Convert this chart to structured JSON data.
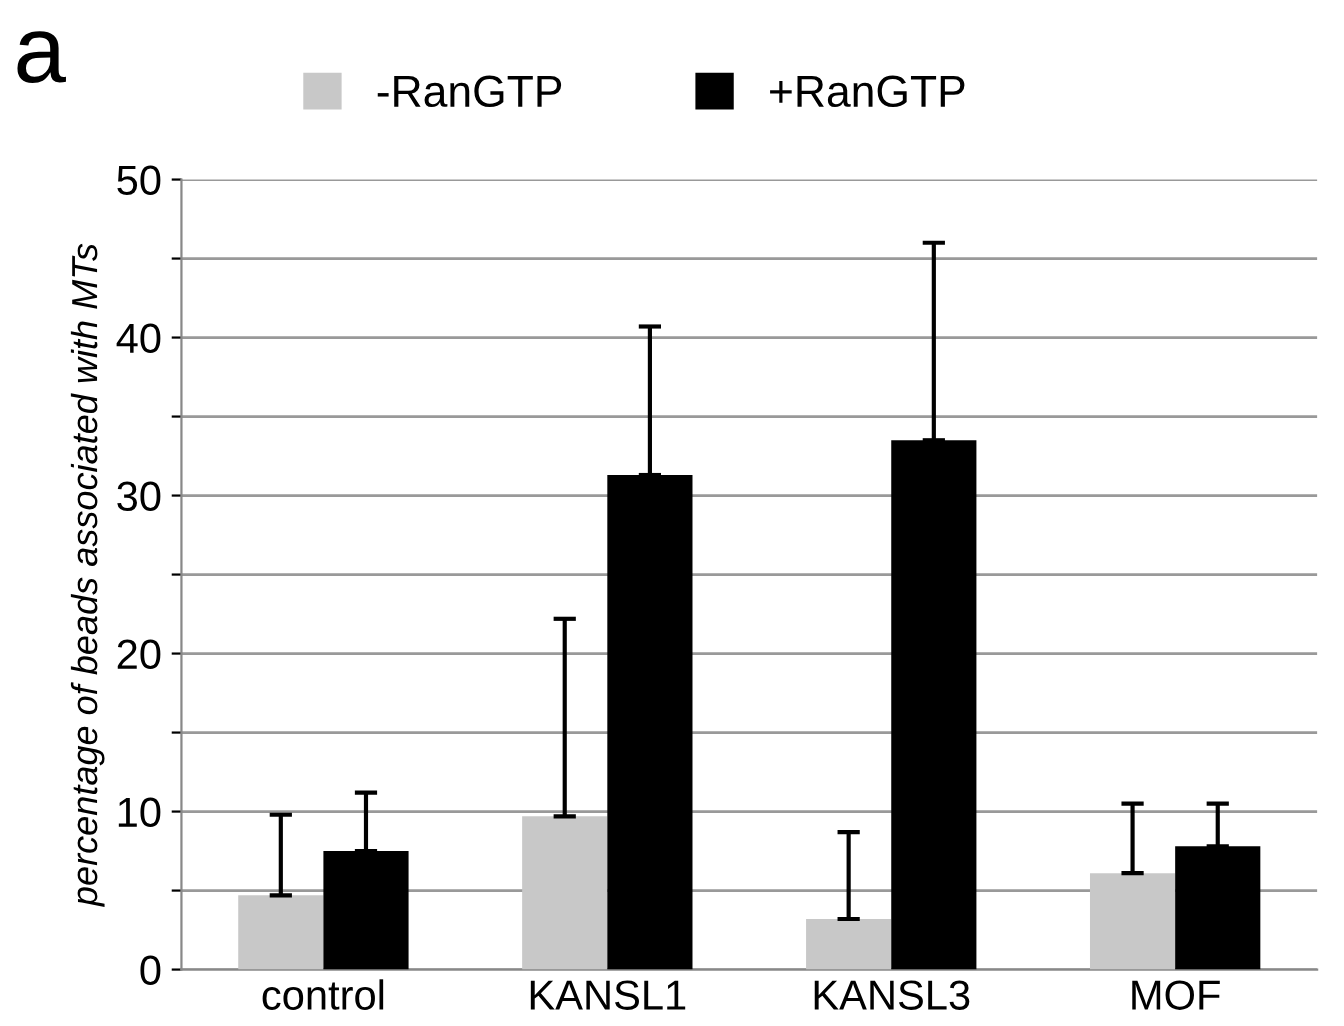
{
  "chart_data": {
    "type": "bar",
    "ylabel": "percentage of beads associated with MTs",
    "annotations": [
      "a"
    ],
    "categories": [
      "control",
      "KANSL1",
      "KANSL3",
      "MOF"
    ],
    "series": [
      {
        "name": "-RanGTP",
        "color": "#c8c8c8",
        "values": [
          4.7,
          9.7,
          3.2,
          6.1
        ],
        "errors": [
          [
            4.7,
            9.8
          ],
          [
            9.7,
            22.2
          ],
          [
            3.2,
            8.7
          ],
          [
            6.1,
            10.5
          ]
        ]
      },
      {
        "name": "+RanGTP",
        "color": "#000000",
        "values": [
          7.5,
          31.3,
          33.5,
          7.8
        ],
        "errors": [
          [
            7.5,
            11.2
          ],
          [
            31.3,
            40.7
          ],
          [
            33.5,
            46
          ],
          [
            7.8,
            10.5
          ]
        ]
      }
    ],
    "ylim": [
      0,
      50
    ],
    "yticks": [
      0,
      {
        "value": 5,
        "label": null
      },
      10,
      {
        "value": 15,
        "label": null
      },
      20,
      {
        "value": 25,
        "label": null
      },
      30,
      {
        "value": 35,
        "label": null
      },
      40,
      {
        "value": 45,
        "label": null
      },
      50
    ],
    "grid": "y",
    "legend": "top"
  }
}
